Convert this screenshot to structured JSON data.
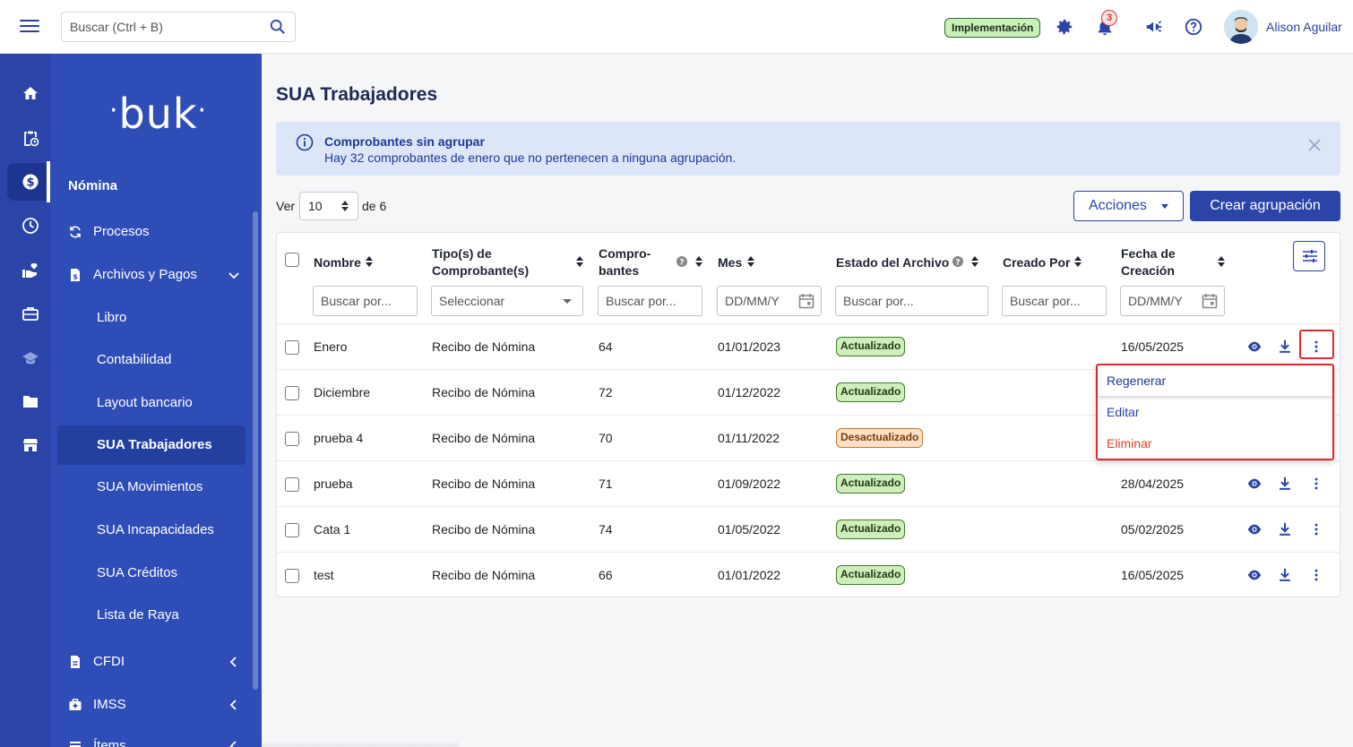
{
  "topbar": {
    "search_placeholder": "Buscar (Ctrl + B)",
    "env_badge": "Implementación",
    "notifications_count": "3",
    "user_name": "Alison Aguilar"
  },
  "sidebar": {
    "logo": "buk",
    "section": "Nómina",
    "items": [
      {
        "label": "Procesos"
      },
      {
        "label": "Archivos y Pagos"
      }
    ],
    "subitems": [
      {
        "label": "Libro"
      },
      {
        "label": "Contabilidad"
      },
      {
        "label": "Layout bancario"
      },
      {
        "label": "SUA Trabajadores"
      },
      {
        "label": "SUA Movimientos"
      },
      {
        "label": "SUA Incapacidades"
      },
      {
        "label": "SUA Créditos"
      },
      {
        "label": "Lista de Raya"
      }
    ],
    "more": [
      {
        "label": "CFDI"
      },
      {
        "label": "IMSS"
      },
      {
        "label": "Ítems"
      }
    ]
  },
  "page": {
    "title": "SUA Trabajadores",
    "alert_title": "Comprobantes sin agrupar",
    "alert_text": "Hay 32 comprobantes de enero que no pertenecen a ninguna agrupación.",
    "ver_label": "Ver",
    "per_page": "10",
    "de_label": "de 6",
    "acciones_label": "Acciones",
    "crear_label": "Crear agrupación"
  },
  "table": {
    "headers": {
      "nombre": "Nombre",
      "tipo_1": "Tipo(s) de",
      "tipo_2": "Comprobante(s)",
      "compro_1": "Compro-",
      "compro_2": "bantes",
      "mes": "Mes",
      "estado": "Estado del Archivo",
      "creado": "Creado Por",
      "fecha_1": "Fecha de",
      "fecha_2": "Creación"
    },
    "filters": {
      "nombre": "Buscar por...",
      "tipo": "Seleccionar",
      "compro": "Buscar por...",
      "mes": "DD/MM/Y",
      "estado": "Buscar por...",
      "creado": "Buscar por...",
      "fecha": "DD/MM/Y"
    },
    "rows": [
      {
        "nombre": "Enero",
        "tipo": "Recibo de Nómina",
        "compro": "64",
        "mes": "01/01/2023",
        "estado": "Actualizado",
        "fecha": "16/05/2025"
      },
      {
        "nombre": "Diciembre",
        "tipo": "Recibo de Nómina",
        "compro": "72",
        "mes": "01/12/2022",
        "estado": "Actualizado",
        "fecha": ""
      },
      {
        "nombre": "prueba 4",
        "tipo": "Recibo de Nómina",
        "compro": "70",
        "mes": "01/11/2022",
        "estado": "Desactualizado",
        "fecha": ""
      },
      {
        "nombre": "prueba",
        "tipo": "Recibo de Nómina",
        "compro": "71",
        "mes": "01/09/2022",
        "estado": "Actualizado",
        "fecha": "28/04/2025"
      },
      {
        "nombre": "Cata 1",
        "tipo": "Recibo de Nómina",
        "compro": "74",
        "mes": "01/05/2022",
        "estado": "Actualizado",
        "fecha": "05/02/2025"
      },
      {
        "nombre": "test",
        "tipo": "Recibo de Nómina",
        "compro": "66",
        "mes": "01/01/2022",
        "estado": "Actualizado",
        "fecha": "16/05/2025"
      }
    ]
  },
  "row_menu": {
    "regenerar": "Regenerar",
    "editar": "Editar",
    "eliminar": "Eliminar"
  },
  "colors": {
    "primary": "#2a44a8",
    "danger": "#e0452b",
    "ok_bg": "#cfeebc",
    "warn_bg": "#fde1c6"
  }
}
